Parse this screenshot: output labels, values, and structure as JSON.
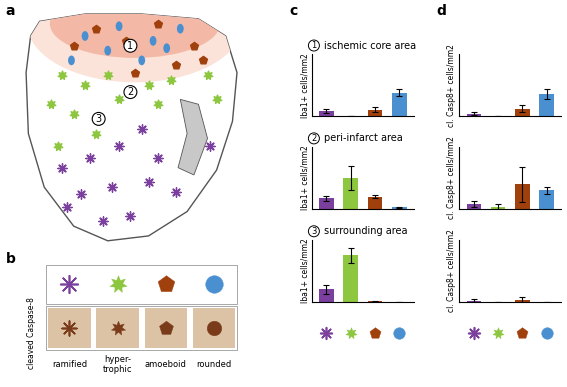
{
  "panel_labels": [
    "a",
    "b",
    "c",
    "d"
  ],
  "schematic": {
    "region_numbers": [
      "1",
      "2",
      "3"
    ]
  },
  "cell_types": {
    "names": [
      "ramified",
      "hyper-\ntrophic",
      "amoeboid",
      "rounded"
    ],
    "colors": [
      "#7b3f9e",
      "#8dc63f",
      "#a0410d",
      "#4a90d0"
    ],
    "stain_label": "cleaved Caspase-8"
  },
  "chart_data": [
    {
      "type": "bar",
      "region_number": "1",
      "title": "ischemic core area",
      "y_label": "Iba1+ cells/mm2",
      "categories": [
        null,
        null,
        null,
        null
      ],
      "values": [
        8,
        0,
        10,
        38
      ],
      "errors": [
        3,
        0,
        4,
        6
      ],
      "colors": [
        "#7b3f9e",
        "#8dc63f",
        "#a0410d",
        "#4a90d0"
      ],
      "ylim": [
        0,
        100
      ],
      "yticks": [],
      "tick_labels": false
    },
    {
      "type": "bar",
      "region_number": "2",
      "title": "peri-infarct area",
      "y_label": "Iba1+ cells/mm2",
      "categories": [
        null,
        null,
        null,
        null
      ],
      "values": [
        17,
        50,
        20,
        3
      ],
      "errors": [
        4,
        20,
        3,
        1
      ],
      "colors": [
        "#7b3f9e",
        "#8dc63f",
        "#a0410d",
        "#4a90d0"
      ],
      "ylim": [
        0,
        100
      ],
      "yticks": [],
      "tick_labels": false
    },
    {
      "type": "bar",
      "region_number": "3",
      "title": "surrounding area",
      "y_label": "Iba1+ cells/mm2",
      "categories": [
        null,
        null,
        null,
        null
      ],
      "values": [
        20,
        75,
        1,
        0
      ],
      "errors": [
        8,
        12,
        0.5,
        0
      ],
      "colors": [
        "#7b3f9e",
        "#8dc63f",
        "#a0410d",
        "#4a90d0"
      ],
      "ylim": [
        0,
        100
      ],
      "yticks": [],
      "tick_labels": false
    },
    {
      "type": "bar",
      "y_label": "cl. Casp8+ cells/mm2",
      "categories": [
        null,
        null,
        null,
        null
      ],
      "values": [
        4,
        0,
        12,
        35
      ],
      "errors": [
        3,
        0,
        6,
        8
      ],
      "colors": [
        "#7b3f9e",
        "#8dc63f",
        "#a0410d",
        "#4a90d0"
      ],
      "ylim": [
        0,
        100
      ],
      "yticks": [],
      "tick_labels": false
    },
    {
      "type": "bar",
      "y_label": "cl. Casp8+ cells/mm2",
      "categories": [
        null,
        null,
        null,
        null
      ],
      "values": [
        8,
        4,
        40,
        30
      ],
      "errors": [
        5,
        4,
        28,
        6
      ],
      "colors": [
        "#7b3f9e",
        "#8dc63f",
        "#a0410d",
        "#4a90d0"
      ],
      "ylim": [
        0,
        100
      ],
      "yticks": [],
      "tick_labels": false
    },
    {
      "type": "bar",
      "y_label": "cl. Casp8+ cells/mm2",
      "categories": [
        null,
        null,
        null,
        null
      ],
      "values": [
        2,
        0,
        3,
        0
      ],
      "errors": [
        3,
        0,
        5,
        0
      ],
      "colors": [
        "#7b3f9e",
        "#8dc63f",
        "#a0410d",
        "#4a90d0"
      ],
      "ylim": [
        0,
        100
      ],
      "yticks": [],
      "tick_labels": false
    }
  ]
}
